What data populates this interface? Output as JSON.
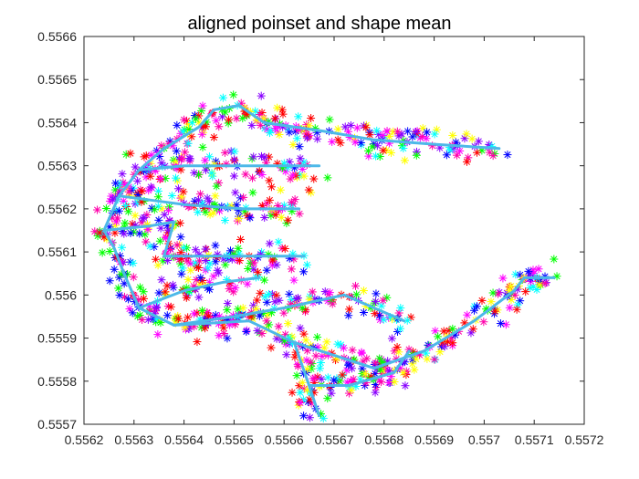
{
  "figure": {
    "title": "aligned poinset and shape mean"
  },
  "chart_data": {
    "type": "scatter",
    "title": "aligned poinset and shape mean",
    "xlabel": "",
    "ylabel": "",
    "xlim": [
      0.5562,
      0.5572
    ],
    "ylim": [
      0.5557,
      0.5566
    ],
    "x_ticks": [
      "0.5562",
      "0.5563",
      "0.5564",
      "0.5565",
      "0.5566",
      "0.5567",
      "0.5568",
      "0.5569",
      "0.557",
      "0.5571",
      "0.5572"
    ],
    "y_ticks": [
      "0.5557",
      "0.5558",
      "0.5559",
      "0.556",
      "0.5561",
      "0.5562",
      "0.5563",
      "0.5564",
      "0.5565",
      "0.5566"
    ],
    "grid": false,
    "legend": "none",
    "marker": "asterisk",
    "point_colors": [
      "#ff00ff",
      "#ff0000",
      "#0000ff",
      "#00ff00",
      "#ffff00",
      "#00ffff",
      "#ff00aa",
      "#8800ff"
    ],
    "mean_color": "#4db8e8",
    "mean_shape": [
      {
        "name": "outline",
        "points": [
          [
            0.55667,
            0.55572
          ],
          [
            0.55665,
            0.55579
          ],
          [
            0.55662,
            0.55589
          ],
          [
            0.55653,
            0.55594
          ],
          [
            0.55638,
            0.55593
          ],
          [
            0.55631,
            0.55597
          ],
          [
            0.55628,
            0.55605
          ],
          [
            0.55626,
            0.55611
          ],
          [
            0.55624,
            0.55615
          ],
          [
            0.55627,
            0.55623
          ],
          [
            0.55631,
            0.55629
          ],
          [
            0.55636,
            0.55634
          ],
          [
            0.55643,
            0.55639
          ],
          [
            0.55646,
            0.55643
          ]
        ]
      },
      {
        "name": "finger-1",
        "points": [
          [
            0.55646,
            0.55643
          ],
          [
            0.55651,
            0.55644
          ],
          [
            0.55656,
            0.5564
          ],
          [
            0.55668,
            0.55638
          ],
          [
            0.55678,
            0.55636
          ],
          [
            0.5569,
            0.55635
          ],
          [
            0.55703,
            0.55634
          ]
        ]
      },
      {
        "name": "finger-2",
        "points": [
          [
            0.55631,
            0.55629
          ],
          [
            0.5564,
            0.5563
          ],
          [
            0.55653,
            0.5563
          ],
          [
            0.55662,
            0.5563
          ],
          [
            0.55667,
            0.5563
          ]
        ]
      },
      {
        "name": "finger-3",
        "points": [
          [
            0.55627,
            0.55623
          ],
          [
            0.5564,
            0.55621
          ],
          [
            0.55652,
            0.5562
          ],
          [
            0.55663,
            0.5562
          ]
        ]
      },
      {
        "name": "finger-4",
        "points": [
          [
            0.55624,
            0.55615
          ],
          [
            0.55633,
            0.55616
          ],
          [
            0.55638,
            0.55617
          ],
          [
            0.55636,
            0.55609
          ],
          [
            0.55652,
            0.55609
          ],
          [
            0.55664,
            0.55609
          ]
        ]
      },
      {
        "name": "finger-5",
        "points": [
          [
            0.55631,
            0.55597
          ],
          [
            0.5564,
            0.55601
          ],
          [
            0.55648,
            0.55603
          ],
          [
            0.55655,
            0.55604
          ]
        ]
      },
      {
        "name": "finger-6",
        "points": [
          [
            0.55638,
            0.55593
          ],
          [
            0.5565,
            0.55595
          ],
          [
            0.5566,
            0.55597
          ],
          [
            0.55672,
            0.556
          ],
          [
            0.55678,
            0.55597
          ],
          [
            0.55684,
            0.55594
          ]
        ]
      },
      {
        "name": "finger-7",
        "points": [
          [
            0.55662,
            0.55589
          ],
          [
            0.5567,
            0.55586
          ],
          [
            0.55678,
            0.55583
          ],
          [
            0.55688,
            0.55587
          ],
          [
            0.55698,
            0.55594
          ],
          [
            0.55706,
            0.55601
          ],
          [
            0.55708,
            0.55604
          ],
          [
            0.55714,
            0.55604
          ]
        ]
      },
      {
        "name": "finger-8",
        "points": [
          [
            0.55665,
            0.55579
          ],
          [
            0.55673,
            0.55579
          ],
          [
            0.55682,
            0.55582
          ],
          [
            0.55685,
            0.55587
          ]
        ]
      }
    ]
  }
}
